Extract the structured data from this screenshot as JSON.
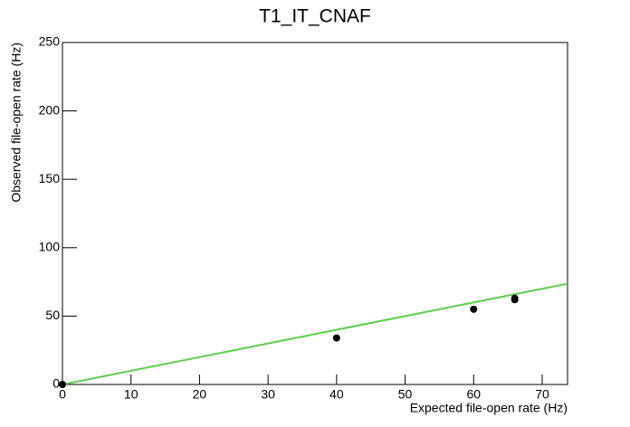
{
  "chart_data": {
    "type": "scatter",
    "title": "T1_IT_CNAF",
    "x_label": "Expected file-open rate (Hz)",
    "y_label": "Observed file-open rate (Hz)",
    "series": [
      {
        "type": "scatter",
        "color": "#000000",
        "x": [
          0,
          40,
          60,
          66,
          66
        ],
        "values": [
          0,
          34,
          55,
          62,
          63
        ]
      },
      {
        "type": "line",
        "color": "#5ccd4c",
        "x": [
          0,
          73.7
        ],
        "values": [
          0,
          73.7
        ]
      }
    ],
    "xlim": [
      0,
      73.7
    ],
    "ylim": [
      0,
      250
    ],
    "xticks": [
      0,
      10,
      20,
      30,
      40,
      50,
      60,
      70
    ],
    "yticks": [
      0,
      50,
      100,
      150,
      200,
      250
    ],
    "grid": false
  }
}
